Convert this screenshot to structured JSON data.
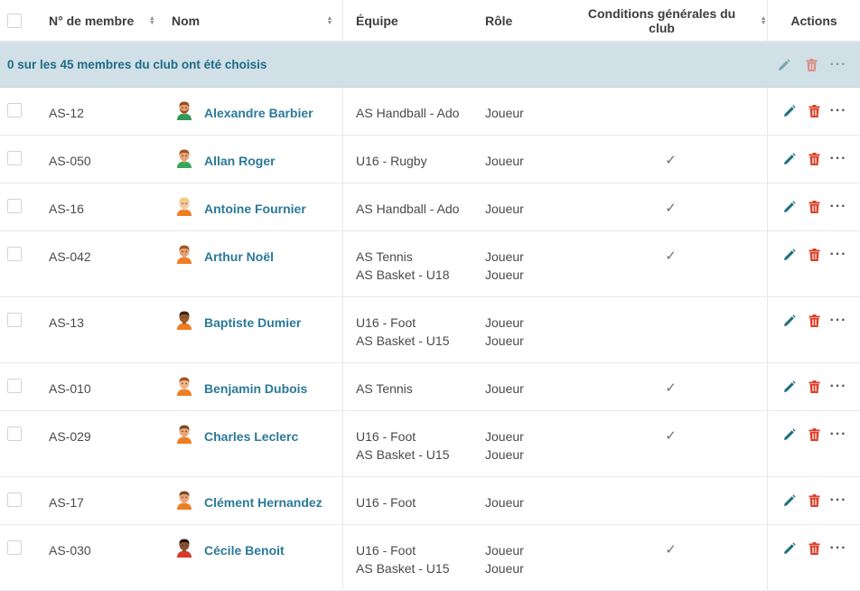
{
  "header": {
    "member_no": "N° de membre",
    "name": "Nom",
    "team": "Équipe",
    "role": "Rôle",
    "conditions": "Conditions générales du club",
    "actions": "Actions"
  },
  "selection": {
    "text": "0 sur les 45 membres du club ont été choisis"
  },
  "colors": {
    "accent": "#2b7a98",
    "edit": "#1f6f7e",
    "delete": "#d9412b",
    "selection_bg": "#d0e0e6"
  },
  "rows": [
    {
      "id": "AS-12",
      "name": "Alexandre Barbier",
      "avatar": "avatar-beard-green",
      "teams": [
        "AS Handball - Ado"
      ],
      "roles": [
        "Joueur"
      ],
      "accepted": false
    },
    {
      "id": "AS-050",
      "name": "Allan Roger",
      "avatar": "avatar-green",
      "teams": [
        "U16 - Rugby"
      ],
      "roles": [
        "Joueur"
      ],
      "accepted": true
    },
    {
      "id": "AS-16",
      "name": "Antoine Fournier",
      "avatar": "avatar-blond-orange",
      "teams": [
        "AS Handball - Ado"
      ],
      "roles": [
        "Joueur"
      ],
      "accepted": true
    },
    {
      "id": "AS-042",
      "name": "Arthur Noël",
      "avatar": "avatar-orange",
      "teams": [
        "AS Tennis",
        "AS Basket - U18"
      ],
      "roles": [
        "Joueur",
        "Joueur"
      ],
      "accepted": true
    },
    {
      "id": "AS-13",
      "name": "Baptiste Dumier",
      "avatar": "avatar-dark-orange",
      "teams": [
        "U16 - Foot",
        "AS Basket - U15"
      ],
      "roles": [
        "Joueur",
        "Joueur"
      ],
      "accepted": false
    },
    {
      "id": "AS-010",
      "name": "Benjamin Dubois",
      "avatar": "avatar-small-orange",
      "teams": [
        "AS Tennis"
      ],
      "roles": [
        "Joueur"
      ],
      "accepted": true
    },
    {
      "id": "AS-029",
      "name": "Charles Leclerc",
      "avatar": "avatar-round-orange",
      "teams": [
        "U16 - Foot",
        "AS Basket - U15"
      ],
      "roles": [
        "Joueur",
        "Joueur"
      ],
      "accepted": true
    },
    {
      "id": "AS-17",
      "name": "Clément Hernandez",
      "avatar": "avatar-round-orange",
      "teams": [
        "U16 - Foot"
      ],
      "roles": [
        "Joueur"
      ],
      "accepted": false
    },
    {
      "id": "AS-030",
      "name": "Cécile Benoit",
      "avatar": "avatar-dark-red",
      "teams": [
        "U16 - Foot",
        "AS Basket - U15"
      ],
      "roles": [
        "Joueur",
        "Joueur"
      ],
      "accepted": true
    }
  ]
}
